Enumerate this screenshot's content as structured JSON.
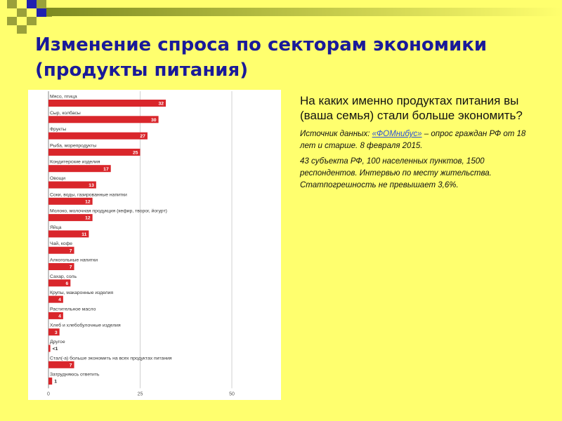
{
  "slide": {
    "title_line1": "Изменение спроса по секторам экономики",
    "title_line2": "(продукты питания)",
    "question": "На каких именно продуктах питания вы (ваша семья) стали больше экономить?",
    "source_prefix": "Источник данных:",
    "source_link": "«ФОМнибус»",
    "source_suffix": "– опрос граждан РФ от 18 лет и старше. 8 февраля 2015.",
    "method_note": "43 субъекта РФ, 100 населенных пунктов, 1500 респондентов. Интервью по месту жительства. Статпогрешность не превышает 3,6%."
  },
  "colors": {
    "background": "#ffff6e",
    "title": "#1a1a99",
    "bar": "#d9262b",
    "deco_green": "#9aa13a",
    "deco_blue": "#2020b0"
  },
  "chart_data": {
    "type": "bar",
    "orientation": "horizontal",
    "categories": [
      "Мясо, птица",
      "Сыр, колбасы",
      "Фрукты",
      "Рыба, морепродукты",
      "Кондитерские изделия",
      "Овощи",
      "Соки, воды, газированные напитки",
      "Молоко, молочная продукция (кефир, творог, йогурт)",
      "Яйца",
      "Чай, кофе",
      "Алкогольные напитки",
      "Сахар, соль",
      "Крупы, макаронные изделия",
      "Растительное масло",
      "Хлеб и хлебобулочные изделия",
      "Другое",
      "Стал(-а) больше экономить на всех продуктах питания",
      "Затрудняюсь ответить"
    ],
    "values": [
      32,
      30,
      27,
      25,
      17,
      13,
      12,
      12,
      11,
      7,
      7,
      6,
      4,
      4,
      3,
      0.5,
      7,
      1
    ],
    "value_labels": [
      "32",
      "30",
      "27",
      "25",
      "17",
      "13",
      "12",
      "12",
      "11",
      "7",
      "7",
      "6",
      "4",
      "4",
      "3",
      "<1",
      "7",
      "1"
    ],
    "xlim": [
      0,
      50
    ],
    "x_ticks": [
      "0",
      "25",
      "50"
    ],
    "grid": true
  }
}
